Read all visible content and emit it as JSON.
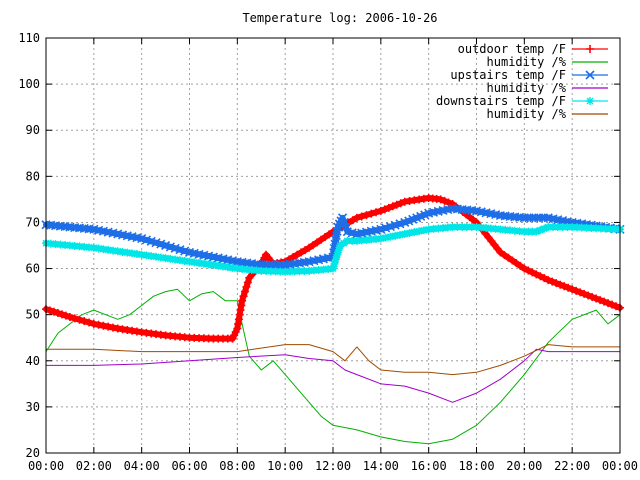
{
  "chart_data": {
    "type": "line",
    "title": "Temperature log: 2006-10-26",
    "xlabel": "",
    "ylabel": "",
    "xlim": [
      0,
      24
    ],
    "ylim": [
      20,
      110
    ],
    "grid": true,
    "legend_position": "top-right",
    "x_ticks": [
      {
        "value": 0,
        "label": "00:00"
      },
      {
        "value": 2,
        "label": "02:00"
      },
      {
        "value": 4,
        "label": "04:00"
      },
      {
        "value": 6,
        "label": "06:00"
      },
      {
        "value": 8,
        "label": "08:00"
      },
      {
        "value": 10,
        "label": "10:00"
      },
      {
        "value": 12,
        "label": "12:00"
      },
      {
        "value": 14,
        "label": "14:00"
      },
      {
        "value": 16,
        "label": "16:00"
      },
      {
        "value": 18,
        "label": "18:00"
      },
      {
        "value": 20,
        "label": "20:00"
      },
      {
        "value": 22,
        "label": "22:00"
      },
      {
        "value": 24,
        "label": "00:00"
      }
    ],
    "y_ticks": [
      20,
      30,
      40,
      50,
      60,
      70,
      80,
      90,
      100,
      110
    ],
    "series": [
      {
        "name": "outdoor temp /F",
        "color": "#ff0000",
        "marker": "+",
        "points": [
          [
            0,
            51.2
          ],
          [
            1,
            49.5
          ],
          [
            2,
            48
          ],
          [
            3,
            47
          ],
          [
            4,
            46.2
          ],
          [
            5,
            45.5
          ],
          [
            6,
            45
          ],
          [
            7,
            44.8
          ],
          [
            7.8,
            44.8
          ],
          [
            8,
            47
          ],
          [
            8.2,
            53
          ],
          [
            8.5,
            58
          ],
          [
            9,
            61
          ],
          [
            9.2,
            63
          ],
          [
            9.5,
            61
          ],
          [
            10,
            61.5
          ],
          [
            11,
            64.5
          ],
          [
            12,
            68
          ],
          [
            13,
            71
          ],
          [
            14,
            72.5
          ],
          [
            15,
            74.5
          ],
          [
            16,
            75.3
          ],
          [
            16.5,
            75
          ],
          [
            17,
            74
          ],
          [
            18,
            70
          ],
          [
            19,
            63.5
          ],
          [
            20,
            60
          ],
          [
            21,
            57.5
          ],
          [
            22,
            55.5
          ],
          [
            23,
            53.5
          ],
          [
            24,
            51.5
          ]
        ]
      },
      {
        "name": "humidity /%",
        "color": "#00b000",
        "marker": "none",
        "points": [
          [
            0,
            42
          ],
          [
            0.5,
            46
          ],
          [
            1,
            48
          ],
          [
            1.5,
            50
          ],
          [
            2,
            51
          ],
          [
            2.5,
            50
          ],
          [
            3,
            49
          ],
          [
            3.5,
            50
          ],
          [
            4,
            52
          ],
          [
            4.5,
            54
          ],
          [
            5,
            55
          ],
          [
            5.5,
            55.5
          ],
          [
            6,
            53
          ],
          [
            6.5,
            54.5
          ],
          [
            7,
            55
          ],
          [
            7.5,
            53
          ],
          [
            8,
            53
          ],
          [
            8.2,
            48
          ],
          [
            8.5,
            41
          ],
          [
            9,
            38
          ],
          [
            9.5,
            40
          ],
          [
            10,
            37
          ],
          [
            10.5,
            34
          ],
          [
            11,
            31
          ],
          [
            11.5,
            28
          ],
          [
            12,
            26
          ],
          [
            13,
            25
          ],
          [
            14,
            23.5
          ],
          [
            15,
            22.5
          ],
          [
            16,
            22
          ],
          [
            17,
            23
          ],
          [
            18,
            26
          ],
          [
            19,
            31
          ],
          [
            20,
            37
          ],
          [
            21,
            44
          ],
          [
            22,
            49
          ],
          [
            23,
            51
          ],
          [
            23.5,
            48
          ],
          [
            24,
            50
          ]
        ]
      },
      {
        "name": "upstairs temp /F",
        "color": "#1e6ee8",
        "marker": "x",
        "points": [
          [
            0,
            69.5
          ],
          [
            2,
            68.5
          ],
          [
            4,
            66.5
          ],
          [
            6,
            63.5
          ],
          [
            8,
            61.5
          ],
          [
            9,
            60.8
          ],
          [
            10,
            60.8
          ],
          [
            11,
            61.5
          ],
          [
            12,
            62.5
          ],
          [
            12.2,
            69
          ],
          [
            12.4,
            71
          ],
          [
            12.6,
            68
          ],
          [
            13,
            67.5
          ],
          [
            14,
            68.5
          ],
          [
            15,
            70
          ],
          [
            16,
            72
          ],
          [
            17,
            73
          ],
          [
            18,
            72.5
          ],
          [
            19,
            71.5
          ],
          [
            20,
            71
          ],
          [
            21,
            71
          ],
          [
            22,
            70
          ],
          [
            24,
            68.5
          ]
        ]
      },
      {
        "name": "humidity /%",
        "color": "#a000c8",
        "marker": "none",
        "points": [
          [
            0,
            39
          ],
          [
            2,
            39
          ],
          [
            4,
            39.3
          ],
          [
            6,
            40
          ],
          [
            8,
            40.7
          ],
          [
            10,
            41.3
          ],
          [
            11,
            40.5
          ],
          [
            12,
            40
          ],
          [
            12.5,
            38
          ],
          [
            13,
            37
          ],
          [
            14,
            35
          ],
          [
            15,
            34.5
          ],
          [
            16,
            33
          ],
          [
            17,
            31
          ],
          [
            18,
            33
          ],
          [
            19,
            36
          ],
          [
            20,
            40
          ],
          [
            20.5,
            42.5
          ],
          [
            21,
            42
          ],
          [
            22,
            42
          ],
          [
            24,
            42
          ]
        ]
      },
      {
        "name": "downstairs temp /F",
        "color": "#00e6e6",
        "marker": "*",
        "points": [
          [
            0,
            65.5
          ],
          [
            2,
            64.5
          ],
          [
            4,
            63
          ],
          [
            6,
            61.5
          ],
          [
            8,
            60
          ],
          [
            9,
            59.5
          ],
          [
            10,
            59.3
          ],
          [
            11,
            59.5
          ],
          [
            12,
            60
          ],
          [
            12.3,
            65
          ],
          [
            12.6,
            66
          ],
          [
            13,
            66
          ],
          [
            14,
            66.5
          ],
          [
            15,
            67.5
          ],
          [
            16,
            68.5
          ],
          [
            17,
            69
          ],
          [
            18,
            69
          ],
          [
            19,
            68.5
          ],
          [
            20,
            68
          ],
          [
            20.5,
            68
          ],
          [
            21,
            69
          ],
          [
            22,
            69
          ],
          [
            24,
            68.5
          ]
        ]
      },
      {
        "name": "humidity /%",
        "color": "#a04a00",
        "marker": "none",
        "points": [
          [
            0,
            42.5
          ],
          [
            2,
            42.5
          ],
          [
            4,
            42
          ],
          [
            6,
            42
          ],
          [
            8,
            42
          ],
          [
            10,
            43.5
          ],
          [
            11,
            43.5
          ],
          [
            12,
            42
          ],
          [
            12.5,
            40
          ],
          [
            13,
            43
          ],
          [
            13.5,
            40
          ],
          [
            14,
            38
          ],
          [
            15,
            37.5
          ],
          [
            16,
            37.5
          ],
          [
            17,
            37
          ],
          [
            18,
            37.5
          ],
          [
            19,
            39
          ],
          [
            20,
            41
          ],
          [
            21,
            43.5
          ],
          [
            22,
            43
          ],
          [
            23,
            43
          ],
          [
            24,
            43
          ]
        ]
      }
    ]
  }
}
